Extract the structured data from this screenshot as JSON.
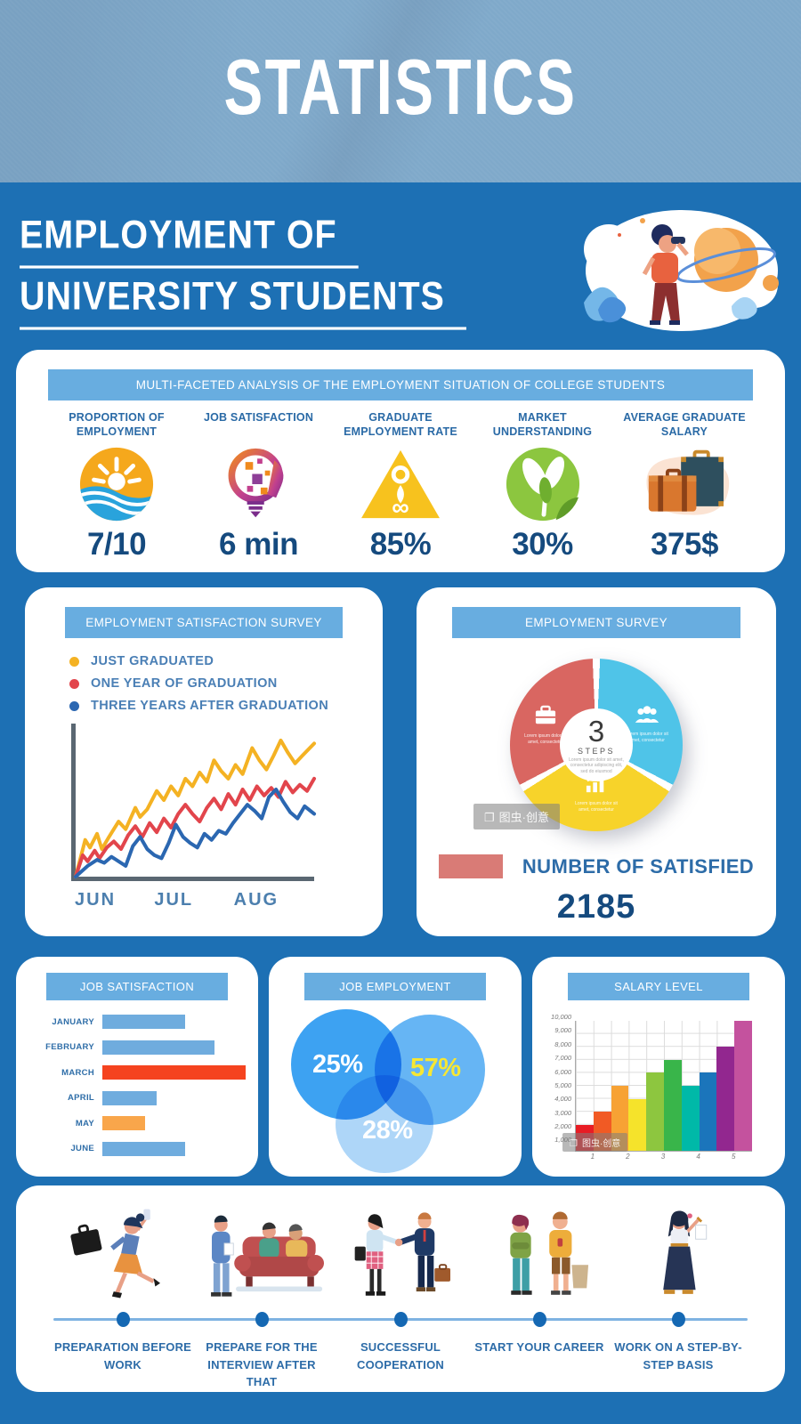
{
  "page": {
    "header_title": "STATISTICS",
    "title_line1": "EMPLOYMENT OF",
    "title_line2": "UNIVERSITY STUDENTS"
  },
  "colors": {
    "page_background": "#1D70B4",
    "header_background": "#7FA9CA",
    "banner_blue": "#68ADE0",
    "value_navy": "#154A7E",
    "label_blue": "#2A6AA6",
    "timeline_line": "#7FB3E2",
    "timeline_dot": "#1568B3"
  },
  "watermark": {
    "text": "图虫·创意"
  },
  "overview": {
    "banner": "MULTI-FACETED ANALYSIS OF THE EMPLOYMENT SITUATION OF COLLEGE STUDENTS",
    "stats": [
      {
        "label": "PROPORTION OF EMPLOYMENT",
        "value": "7/10",
        "icon": "sun-wave-icon"
      },
      {
        "label": "JOB SATISFACTION",
        "value": "6 min",
        "icon": "idea-head-icon"
      },
      {
        "label": "GRADUATE EMPLOYMENT RATE",
        "value": "85%",
        "icon": "triangle-figure-icon"
      },
      {
        "label": "MARKET UNDERSTANDING",
        "value": "30%",
        "icon": "leaf-icon"
      },
      {
        "label": "AVERAGE GRADUATE SALARY",
        "value": "375$",
        "icon": "suitcases-icon"
      }
    ]
  },
  "satisfaction_card": {
    "banner": "EMPLOYMENT SATISFACTION SURVEY"
  },
  "survey_card": {
    "banner": "EMPLOYMENT SURVEY",
    "center_value": "3",
    "center_label": "STEPS",
    "center_caption": "Lorem ipsum dolor sit amet, consectetur adipiscing elit, sed do eiusmod",
    "slice_caption": "Lorem ipsum dolor sit amet, consectetur",
    "legend_label": "NUMBER OF SATISFIED",
    "legend_color": "#D97B76",
    "total": "2185"
  },
  "jobsat_card": {
    "banner": "JOB SATISFACTION"
  },
  "venn_card": {
    "banner": "JOB EMPLOYMENT"
  },
  "salary_card": {
    "banner": "SALARY LEVEL"
  },
  "timeline": {
    "steps": [
      {
        "label": "PREPARATION BEFORE WORK",
        "illustration": "running-woman"
      },
      {
        "label": "PREPARE FOR THE INTERVIEW AFTER THAT",
        "illustration": "interview-couch"
      },
      {
        "label": "SUCCESSFUL COOPERATION",
        "illustration": "handshake"
      },
      {
        "label": "START YOUR CAREER",
        "illustration": "two-people-standing"
      },
      {
        "label": "WORK ON A STEP-BY-STEP BASIS",
        "illustration": "woman-checklist"
      }
    ]
  },
  "chart_data": [
    {
      "type": "line",
      "title": "EMPLOYMENT SATISFACTION SURVEY",
      "x_labels": [
        "JUN",
        "JUL",
        "AUG"
      ],
      "grid": false,
      "legend_position": "top-left",
      "series": [
        {
          "name": "JUST GRADUATED",
          "color": "#F4B223",
          "points": [
            [
              0,
              0
            ],
            [
              4,
              24
            ],
            [
              6,
              19
            ],
            [
              9,
              28
            ],
            [
              11,
              18
            ],
            [
              14,
              26
            ],
            [
              18,
              36
            ],
            [
              21,
              31
            ],
            [
              25,
              45
            ],
            [
              27,
              39
            ],
            [
              30,
              44
            ],
            [
              34,
              56
            ],
            [
              37,
              50
            ],
            [
              40,
              59
            ],
            [
              43,
              53
            ],
            [
              46,
              64
            ],
            [
              49,
              59
            ],
            [
              52,
              68
            ],
            [
              55,
              62
            ],
            [
              58,
              76
            ],
            [
              61,
              69
            ],
            [
              64,
              64
            ],
            [
              67,
              73
            ],
            [
              70,
              67
            ],
            [
              74,
              84
            ],
            [
              77,
              76
            ],
            [
              80,
              70
            ],
            [
              83,
              79
            ],
            [
              86,
              89
            ],
            [
              89,
              81
            ],
            [
              92,
              74
            ],
            [
              95,
              79
            ],
            [
              100,
              87
            ]
          ]
        },
        {
          "name": "ONE YEAR OF GRADUATION",
          "color": "#E2454C",
          "points": [
            [
              0,
              0
            ],
            [
              3,
              14
            ],
            [
              5,
              10
            ],
            [
              8,
              17
            ],
            [
              10,
              12
            ],
            [
              13,
              19
            ],
            [
              16,
              23
            ],
            [
              19,
              18
            ],
            [
              22,
              27
            ],
            [
              25,
              33
            ],
            [
              28,
              26
            ],
            [
              31,
              35
            ],
            [
              34,
              29
            ],
            [
              37,
              38
            ],
            [
              40,
              32
            ],
            [
              43,
              41
            ],
            [
              46,
              47
            ],
            [
              49,
              41
            ],
            [
              52,
              36
            ],
            [
              55,
              45
            ],
            [
              58,
              51
            ],
            [
              61,
              44
            ],
            [
              64,
              54
            ],
            [
              67,
              47
            ],
            [
              70,
              57
            ],
            [
              73,
              50
            ],
            [
              76,
              59
            ],
            [
              79,
              53
            ],
            [
              82,
              58
            ],
            [
              85,
              52
            ],
            [
              88,
              62
            ],
            [
              91,
              55
            ],
            [
              94,
              60
            ],
            [
              97,
              56
            ],
            [
              100,
              64
            ]
          ]
        },
        {
          "name": "THREE YEARS AFTER GRADUATION",
          "color": "#2B67B1",
          "points": [
            [
              0,
              0
            ],
            [
              5,
              7
            ],
            [
              9,
              11
            ],
            [
              12,
              9
            ],
            [
              15,
              13
            ],
            [
              18,
              10
            ],
            [
              21,
              7
            ],
            [
              24,
              20
            ],
            [
              27,
              26
            ],
            [
              30,
              18
            ],
            [
              33,
              14
            ],
            [
              36,
              12
            ],
            [
              39,
              22
            ],
            [
              42,
              34
            ],
            [
              45,
              26
            ],
            [
              48,
              22
            ],
            [
              51,
              19
            ],
            [
              54,
              28
            ],
            [
              57,
              24
            ],
            [
              60,
              30
            ],
            [
              63,
              28
            ],
            [
              66,
              35
            ],
            [
              69,
              41
            ],
            [
              72,
              47
            ],
            [
              75,
              43
            ],
            [
              78,
              38
            ],
            [
              81,
              52
            ],
            [
              84,
              57
            ],
            [
              87,
              49
            ],
            [
              90,
              42
            ],
            [
              93,
              38
            ],
            [
              96,
              46
            ],
            [
              100,
              41
            ]
          ]
        }
      ]
    },
    {
      "type": "pie",
      "style": "donut",
      "title": "EMPLOYMENT SURVEY",
      "center_value": "3",
      "center_label": "STEPS",
      "slices": [
        {
          "name": "people",
          "color": "#4FC4E8",
          "value": 33.3
        },
        {
          "name": "growth-chart",
          "color": "#F7D32A",
          "value": 33.3
        },
        {
          "name": "briefcase",
          "color": "#D96661",
          "value": 33.3
        }
      ],
      "legend": [
        {
          "label": "NUMBER OF SATISFIED",
          "color": "#D97B76"
        }
      ],
      "total_satisfied": 2185
    },
    {
      "type": "bar",
      "orientation": "horizontal",
      "title": "JOB SATISFACTION",
      "categories": [
        "JANUARY",
        "FEBRUARY",
        "MARCH",
        "APRIL",
        "MAY",
        "JUNE"
      ],
      "values": [
        58,
        78,
        100,
        38,
        30,
        58
      ],
      "value_unit": "percent-of-longest-bar",
      "colors": [
        "#6FACDE",
        "#6FACDE",
        "#F5431F",
        "#6FACDE",
        "#F9A64B",
        "#6FACDE"
      ]
    },
    {
      "type": "venn",
      "title": "JOB EMPLOYMENT",
      "sets": [
        {
          "value": "25%",
          "color": "#3DA2F2",
          "text_color": "#FFFFFF",
          "position": "left"
        },
        {
          "value": "57%",
          "color": "#66B5F4",
          "text_color": "#F7E733",
          "position": "right"
        },
        {
          "value": "28%",
          "color": "#A5D2F8",
          "text_color": "#FFFFFF",
          "position": "bottom"
        }
      ]
    },
    {
      "type": "bar",
      "orientation": "vertical",
      "title": "SALARY LEVEL",
      "values": [
        2000,
        3000,
        5000,
        4000,
        6000,
        7000,
        5000,
        6000,
        8000,
        10000
      ],
      "colors": [
        "#E81C24",
        "#F15A24",
        "#F7A234",
        "#F5E32B",
        "#8DC63F",
        "#39B54A",
        "#00B9A8",
        "#1B75BB",
        "#92278F",
        "#C4529E"
      ],
      "x_labels": [
        "1",
        "2",
        "3",
        "4",
        "5"
      ],
      "y_ticks": [
        "1,000",
        "2,000",
        "3,000",
        "4,000",
        "5,000",
        "6,000",
        "7,000",
        "8,000",
        "9,000",
        "10,000"
      ],
      "ylim": [
        0,
        10000
      ],
      "grid": true
    }
  ]
}
